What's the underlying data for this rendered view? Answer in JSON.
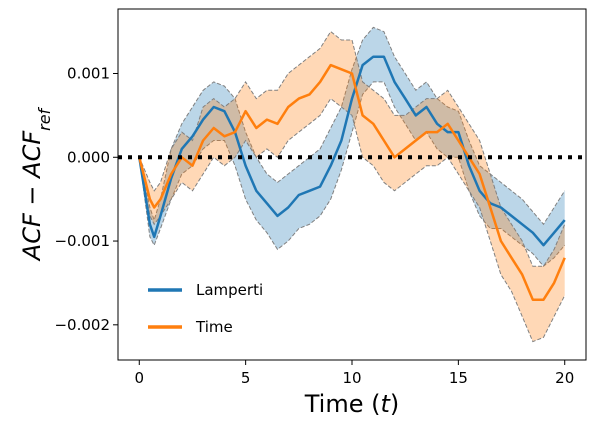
{
  "chart_data": {
    "type": "line",
    "xlabel": "Time (t)",
    "ylabel": "ACF − ACF_ref",
    "xlim": [
      -1,
      21
    ],
    "ylim": [
      -0.00242,
      0.00177
    ],
    "x_ticks": [
      0,
      5,
      10,
      15,
      20
    ],
    "x_tick_labels": [
      "0",
      "5",
      "10",
      "15",
      "20"
    ],
    "y_ticks": [
      -0.002,
      -0.001,
      0.0,
      0.001
    ],
    "y_tick_labels": [
      "−0.002",
      "−0.001",
      "0.000",
      "0.001"
    ],
    "reference_line": {
      "y": 0.0,
      "style": "dotted"
    },
    "legend_position": "lower-left",
    "series": [
      {
        "name": "Lamperti",
        "color": "#1f77b4",
        "band_color": "#1f77b4",
        "x": [
          0,
          0.5,
          0.7,
          1,
          1.5,
          2,
          2.5,
          3,
          3.5,
          4,
          4.5,
          5,
          5.5,
          6,
          6.5,
          7,
          7.5,
          8,
          8.5,
          9,
          9.5,
          10,
          10.5,
          11,
          11.5,
          12,
          12.5,
          13,
          13.5,
          14,
          14.5,
          15,
          15.5,
          16,
          16.5,
          17,
          17.5,
          18,
          18.5,
          19,
          19.5,
          20
        ],
        "mean": [
          0,
          -0.0008,
          -0.00095,
          -0.0007,
          -0.00025,
          0.0001,
          0.00025,
          0.00045,
          0.0006,
          0.00055,
          0.0003,
          -0.0001,
          -0.0004,
          -0.00055,
          -0.0007,
          -0.0006,
          -0.00045,
          -0.0004,
          -0.00035,
          -0.0001,
          0.0002,
          0.0007,
          0.0011,
          0.0012,
          0.0012,
          0.0009,
          0.0007,
          0.0005,
          0.0006,
          0.0004,
          0.0003,
          0.0003,
          -0.0001,
          -0.0004,
          -0.00055,
          -0.0006,
          -0.0007,
          -0.0008,
          -0.0009,
          -0.00105,
          -0.0009,
          -0.00075
        ],
        "lower": [
          0,
          -0.00095,
          -0.00105,
          -0.00085,
          -0.0005,
          -0.0002,
          -0.0001,
          0.0001,
          0.0002,
          0.0002,
          -0.0001,
          -0.0005,
          -0.00075,
          -0.0009,
          -0.0011,
          -0.001,
          -0.00085,
          -0.0008,
          -0.0007,
          -0.0005,
          -0.00015,
          0.0003,
          0.00075,
          0.0009,
          0.0009,
          0.0006,
          0.0004,
          0.0002,
          0.0003,
          0.0001,
          0.0,
          0.0,
          -0.0004,
          -0.0007,
          -0.00085,
          -0.00085,
          -0.00095,
          -0.00105,
          -0.00115,
          -0.0013,
          -0.0012,
          -0.00105
        ],
        "upper": [
          0,
          -0.0006,
          -0.00075,
          -0.0005,
          0.0001,
          0.0004,
          0.0006,
          0.0008,
          0.0009,
          0.00085,
          0.0007,
          0.0003,
          0.0,
          -0.0002,
          -0.0003,
          -0.0002,
          -0.0001,
          0.0,
          0.0001,
          0.00035,
          0.0006,
          0.00105,
          0.0014,
          0.00155,
          0.0015,
          0.0012,
          0.001,
          0.0008,
          0.0009,
          0.0007,
          0.0006,
          0.00055,
          0.0002,
          -0.0001,
          -0.0002,
          -0.0003,
          -0.0004,
          -0.0005,
          -0.00065,
          -0.0008,
          -0.0006,
          -0.0004
        ]
      },
      {
        "name": "Time",
        "color": "#ff7f0e",
        "band_color": "#ff7f0e",
        "x": [
          0,
          0.5,
          0.7,
          1,
          1.5,
          2,
          2.5,
          3,
          3.5,
          4,
          4.5,
          5,
          5.5,
          6,
          6.5,
          7,
          7.5,
          8,
          8.5,
          9,
          9.5,
          10,
          10.5,
          11,
          11.5,
          12,
          12.5,
          13,
          13.5,
          14,
          14.5,
          15,
          15.5,
          16,
          16.5,
          17,
          17.5,
          18,
          18.5,
          19,
          19.5,
          20
        ],
        "mean": [
          0,
          -0.0005,
          -0.0006,
          -0.0005,
          -0.0002,
          0.0,
          -0.0001,
          0.0002,
          0.00035,
          0.00025,
          0.0003,
          0.00055,
          0.00035,
          0.00045,
          0.0004,
          0.0006,
          0.0007,
          0.00075,
          0.0009,
          0.0011,
          0.00105,
          0.001,
          0.0005,
          0.0004,
          0.0002,
          0.0,
          0.0001,
          0.0002,
          0.0003,
          0.0003,
          0.0004,
          0.0002,
          0.0,
          -0.0002,
          -0.0006,
          -0.001,
          -0.0012,
          -0.0014,
          -0.0017,
          -0.0017,
          -0.0015,
          -0.0012
        ],
        "lower": [
          0,
          -0.0007,
          -0.0008,
          -0.0007,
          -0.0005,
          -0.0003,
          -0.0004,
          -0.0002,
          0.0,
          -0.0001,
          0.0,
          0.0002,
          0.0,
          0.0001,
          0.0,
          0.0002,
          0.0003,
          0.0004,
          0.0005,
          0.0007,
          0.0006,
          0.0005,
          0.0,
          -0.0001,
          -0.0003,
          -0.0004,
          -0.0003,
          -0.0002,
          -0.0001,
          -0.0001,
          0.0,
          -0.0002,
          -0.0004,
          -0.0006,
          -0.001,
          -0.0014,
          -0.0016,
          -0.0019,
          -0.0022,
          -0.00215,
          -0.0019,
          -0.00165
        ],
        "upper": [
          0,
          -0.0003,
          -0.0004,
          -0.0003,
          0.0001,
          0.0003,
          0.0002,
          0.0006,
          0.0007,
          0.0006,
          0.0007,
          0.0009,
          0.0007,
          0.0008,
          0.0008,
          0.001,
          0.0011,
          0.0012,
          0.0013,
          0.0015,
          0.0014,
          0.0014,
          0.0009,
          0.0008,
          0.0007,
          0.0005,
          0.0005,
          0.0006,
          0.0007,
          0.0007,
          0.0008,
          0.0006,
          0.0004,
          0.0002,
          -0.0002,
          -0.0006,
          -0.0008,
          -0.001,
          -0.0013,
          -0.0013,
          -0.0011,
          -0.0008
        ]
      }
    ]
  },
  "colors": {
    "lamperti": "#1f77b4",
    "time": "#ff7f0e",
    "band_edge": "#808080",
    "axes": "#000000"
  }
}
